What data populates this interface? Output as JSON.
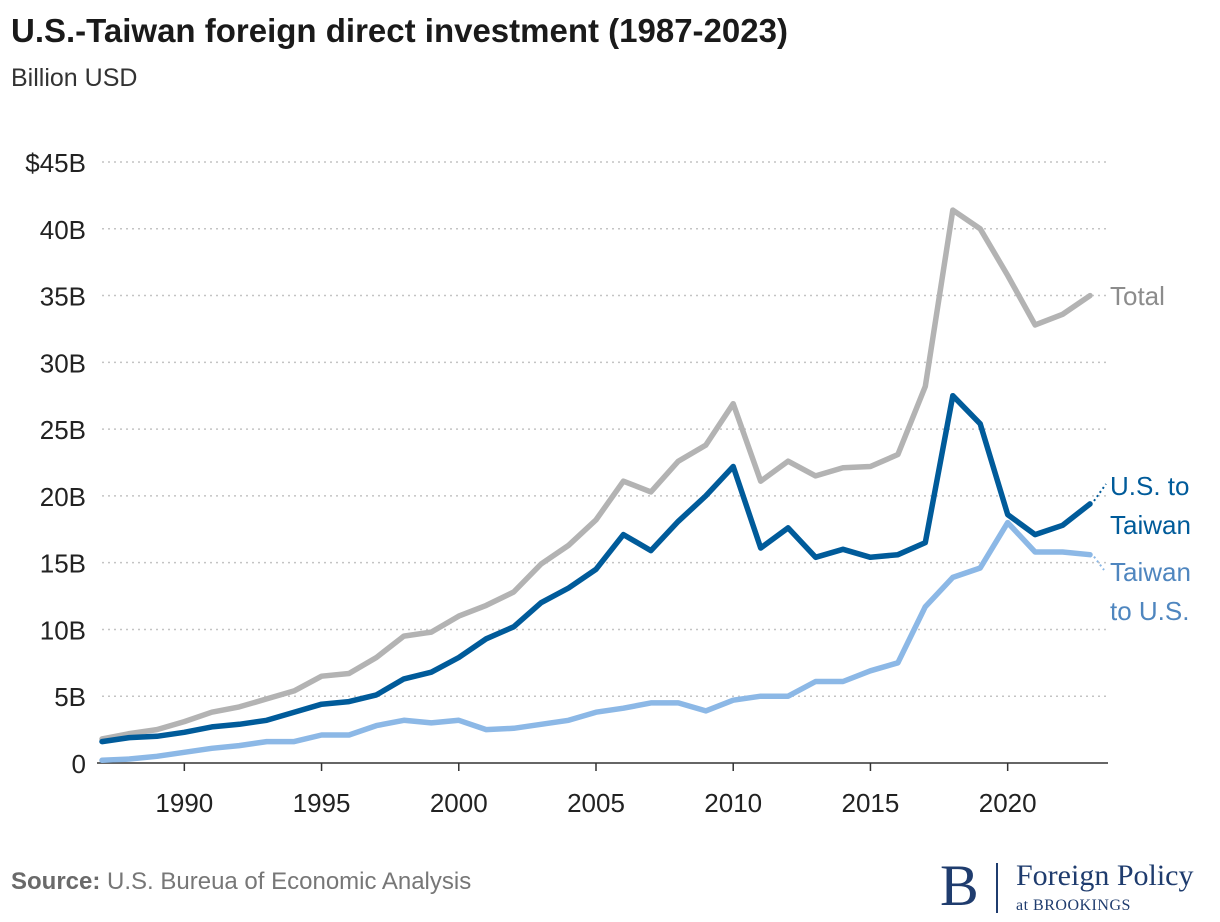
{
  "chart_data": {
    "type": "line",
    "title": "U.S.-Taiwan foreign direct investment (1987-2023)",
    "subtitle": "Billion USD",
    "xlabel": "",
    "ylabel": "",
    "x": [
      1987,
      1988,
      1989,
      1990,
      1991,
      1992,
      1993,
      1994,
      1995,
      1996,
      1997,
      1998,
      1999,
      2000,
      2001,
      2002,
      2003,
      2004,
      2005,
      2006,
      2007,
      2008,
      2009,
      2010,
      2011,
      2012,
      2013,
      2014,
      2015,
      2016,
      2017,
      2018,
      2019,
      2020,
      2021,
      2022,
      2023
    ],
    "xlim": [
      1987,
      2023
    ],
    "ylim": [
      0,
      45
    ],
    "y_ticks": [
      0,
      5,
      10,
      15,
      20,
      25,
      30,
      35,
      40,
      45
    ],
    "y_tick_labels": [
      "0",
      "5B",
      "10B",
      "15B",
      "20B",
      "25B",
      "30B",
      "35B",
      "40B",
      "$45B"
    ],
    "x_ticks": [
      1990,
      1995,
      2000,
      2005,
      2010,
      2015,
      2020
    ],
    "x_tick_labels": [
      "1990",
      "1995",
      "2000",
      "2005",
      "2010",
      "2015",
      "2020"
    ],
    "grid": "horizontal dotted",
    "legend": "inline labels at line ends",
    "series": [
      {
        "name": "Total",
        "label_lines": [
          "Total"
        ],
        "color": "#b3b3b3",
        "label_color": "#8c8c8c",
        "values": [
          1.8,
          2.2,
          2.5,
          3.1,
          3.8,
          4.2,
          4.8,
          5.4,
          6.5,
          6.7,
          7.9,
          9.5,
          9.8,
          11.0,
          11.8,
          12.8,
          14.9,
          16.3,
          18.2,
          21.1,
          20.3,
          22.6,
          23.8,
          26.9,
          21.1,
          22.6,
          21.5,
          22.1,
          22.2,
          23.1,
          28.2,
          41.4,
          40.0,
          36.5,
          32.8,
          33.6,
          35.0
        ]
      },
      {
        "name": "U.S. to Taiwan",
        "label_lines": [
          "U.S. to",
          "Taiwan"
        ],
        "color": "#005b9a",
        "label_color": "#005b9a",
        "values": [
          1.6,
          1.9,
          2.0,
          2.3,
          2.7,
          2.9,
          3.2,
          3.8,
          4.4,
          4.6,
          5.1,
          6.3,
          6.8,
          7.9,
          9.3,
          10.2,
          12.0,
          13.1,
          14.5,
          17.1,
          15.9,
          18.1,
          20.0,
          22.2,
          16.1,
          17.6,
          15.4,
          16.0,
          15.4,
          15.6,
          16.5,
          27.5,
          25.4,
          18.6,
          17.1,
          17.8,
          19.4
        ]
      },
      {
        "name": "Taiwan to U.S.",
        "label_lines": [
          "Taiwan",
          "to U.S."
        ],
        "color": "#8cb8e6",
        "label_color": "#4f86bf",
        "values": [
          0.2,
          0.3,
          0.5,
          0.8,
          1.1,
          1.3,
          1.6,
          1.6,
          2.1,
          2.1,
          2.8,
          3.2,
          3.0,
          3.2,
          2.5,
          2.6,
          2.9,
          3.2,
          3.8,
          4.1,
          4.5,
          4.5,
          3.9,
          4.7,
          5.0,
          5.0,
          6.1,
          6.1,
          6.9,
          7.5,
          11.7,
          13.9,
          14.6,
          18.0,
          15.8,
          15.8,
          15.6
        ]
      }
    ]
  },
  "footer": {
    "source_label": "Source:",
    "source_text": " U.S. Bureua of Economic Analysis"
  },
  "logo": {
    "mark": "B",
    "name": "Foreign Policy",
    "affiliation": "at BROOKINGS"
  }
}
